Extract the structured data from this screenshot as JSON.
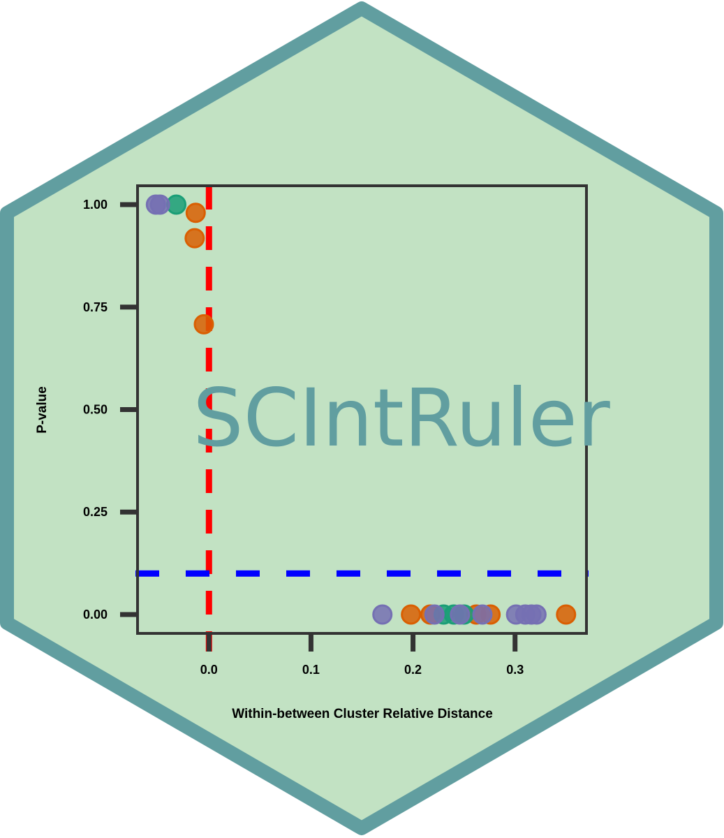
{
  "logo": {
    "brand_text": "SCIntRuler",
    "hex_fill": "#c2e2c3",
    "hex_border": "#619ea0",
    "brand_color": "#619ea0"
  },
  "chart_data": {
    "type": "scatter",
    "title": "",
    "xlabel": "Within-between Cluster Relative Distance",
    "ylabel": "P-value",
    "xlim": [
      -0.07,
      0.37
    ],
    "ylim": [
      -0.046,
      1.046
    ],
    "x_ticks": [
      0.0,
      0.1,
      0.2,
      0.3
    ],
    "x_tick_labels": [
      "0.0",
      "0.1",
      "0.2",
      "0.3"
    ],
    "y_ticks": [
      0.0,
      0.25,
      0.5,
      0.75,
      1.0
    ],
    "y_tick_labels": [
      "0.00",
      "0.25",
      "0.50",
      "0.75",
      "1.00"
    ],
    "reference_lines": [
      {
        "orientation": "vertical",
        "value": 0.0,
        "color": "#ff0000",
        "style": "dashed"
      },
      {
        "orientation": "horizontal",
        "value": 0.1,
        "color": "#0000ff",
        "style": "dashed"
      }
    ],
    "grid": false,
    "legend": "none",
    "series": [
      {
        "color": "#d95f02",
        "points": [
          {
            "x": -0.013,
            "y": 0.98
          },
          {
            "x": -0.014,
            "y": 0.918
          },
          {
            "x": -0.005,
            "y": 0.708
          },
          {
            "x": 0.198,
            "y": 0.0
          },
          {
            "x": 0.217,
            "y": 0.0
          },
          {
            "x": 0.262,
            "y": 0.0
          },
          {
            "x": 0.276,
            "y": 0.0
          },
          {
            "x": 0.35,
            "y": 0.0
          }
        ]
      },
      {
        "color": "#1b9e77",
        "points": [
          {
            "x": -0.032,
            "y": 1.0
          },
          {
            "x": 0.23,
            "y": 0.0
          },
          {
            "x": 0.24,
            "y": 0.0
          },
          {
            "x": 0.25,
            "y": 0.0
          }
        ]
      },
      {
        "color": "#7570b3",
        "points": [
          {
            "x": -0.052,
            "y": 1.0
          },
          {
            "x": -0.048,
            "y": 1.0
          },
          {
            "x": 0.17,
            "y": 0.0
          },
          {
            "x": 0.221,
            "y": 0.0
          },
          {
            "x": 0.246,
            "y": 0.0
          },
          {
            "x": 0.268,
            "y": 0.0
          },
          {
            "x": 0.301,
            "y": 0.0
          },
          {
            "x": 0.31,
            "y": 0.0
          },
          {
            "x": 0.316,
            "y": 0.0
          },
          {
            "x": 0.321,
            "y": 0.0
          }
        ]
      }
    ]
  }
}
